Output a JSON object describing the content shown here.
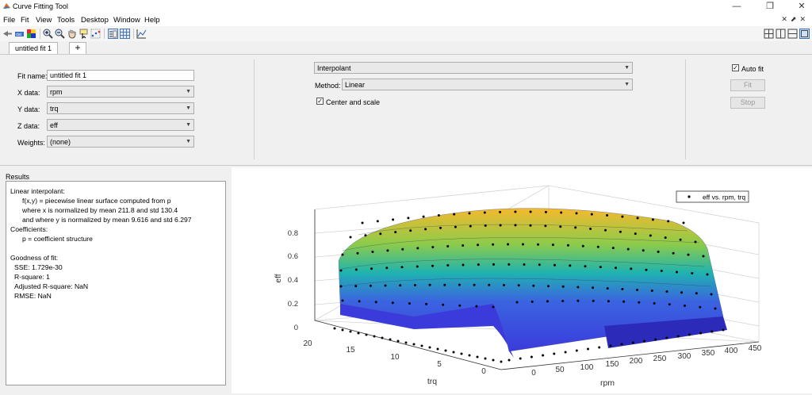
{
  "window": {
    "title": "Curve Fitting Tool",
    "controls": [
      "—",
      "❐",
      "✕"
    ]
  },
  "menu": {
    "items": [
      "File",
      "Fit",
      "View",
      "Tools",
      "Desktop",
      "Window",
      "Help"
    ]
  },
  "tabs": {
    "active": "untitled fit 1",
    "add": "+"
  },
  "settings": {
    "fit_name_label": "Fit name:",
    "fit_name": "untitled fit 1",
    "x_label": "X data:",
    "x_value": "rpm",
    "y_label": "Y data:",
    "y_value": "trq",
    "z_label": "Z data:",
    "z_value": "eff",
    "weights_label": "Weights:",
    "weights_value": "(none)",
    "fit_type": "Interpolant",
    "method_label": "Method:",
    "method_value": "Linear",
    "center_scale_label": "Center and scale",
    "auto_fit_label": "Auto fit",
    "fit_button": "Fit",
    "stop_button": "Stop"
  },
  "results": {
    "title": "Results",
    "lines": [
      "Linear interpolant:",
      "f(x,y) = piecewise linear surface computed from p",
      "where x is normalized by mean 211.8 and std 130.4",
      "and where y is normalized by mean 9.616 and std 6.297",
      "Coefficients:",
      "p = coefficient structure",
      "Goodness of fit:",
      "SSE: 1.729e-30",
      "R-square: 1",
      "Adjusted R-square: NaN",
      "RMSE: NaN"
    ]
  },
  "plot": {
    "legend": "eff vs. rpm, trq",
    "zlabel": "eff",
    "xlabel": "rpm",
    "ylabel": "trq",
    "z_ticks": [
      "0",
      "0.2",
      "0.4",
      "0.6",
      "0.8"
    ],
    "rpm_ticks": [
      "0",
      "50",
      "100",
      "150",
      "200",
      "250",
      "300",
      "350",
      "400",
      "450"
    ],
    "trq_ticks": [
      "20",
      "15",
      "10",
      "5",
      "0"
    ]
  },
  "colors": {
    "surface_low": "#3b3bdc",
    "surface_mid": "#1fb3b0",
    "surface_high": "#f5b92e",
    "points": "#000000"
  }
}
